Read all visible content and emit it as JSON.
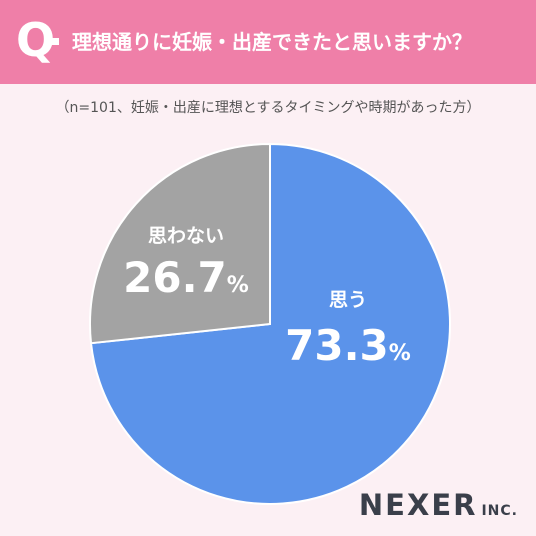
{
  "header": {
    "q_letter": "Q",
    "question": "理想通りに妊娠・出産できたと思いますか？"
  },
  "note": "（n=101、妊娠・出産に理想とするタイミングや時期があった方）",
  "colors": {
    "header_bg": "#ef7fa8",
    "slice_yes": "#5b93ea",
    "slice_no": "#a3a3a3",
    "page_bg": "#fcf0f4"
  },
  "chart_data": {
    "type": "pie",
    "title": "理想通りに妊娠・出産できたと思いますか？",
    "slices": [
      {
        "label": "思う",
        "value": 73.3,
        "value_text": "73.3",
        "unit": "%",
        "color": "#5b93ea"
      },
      {
        "label": "思わない",
        "value": 26.7,
        "value_text": "26.7",
        "unit": "%",
        "color": "#a3a3a3"
      }
    ],
    "start": "top",
    "direction": "clockwise"
  },
  "logo": {
    "main": "NEXER",
    "sub": "INC."
  }
}
